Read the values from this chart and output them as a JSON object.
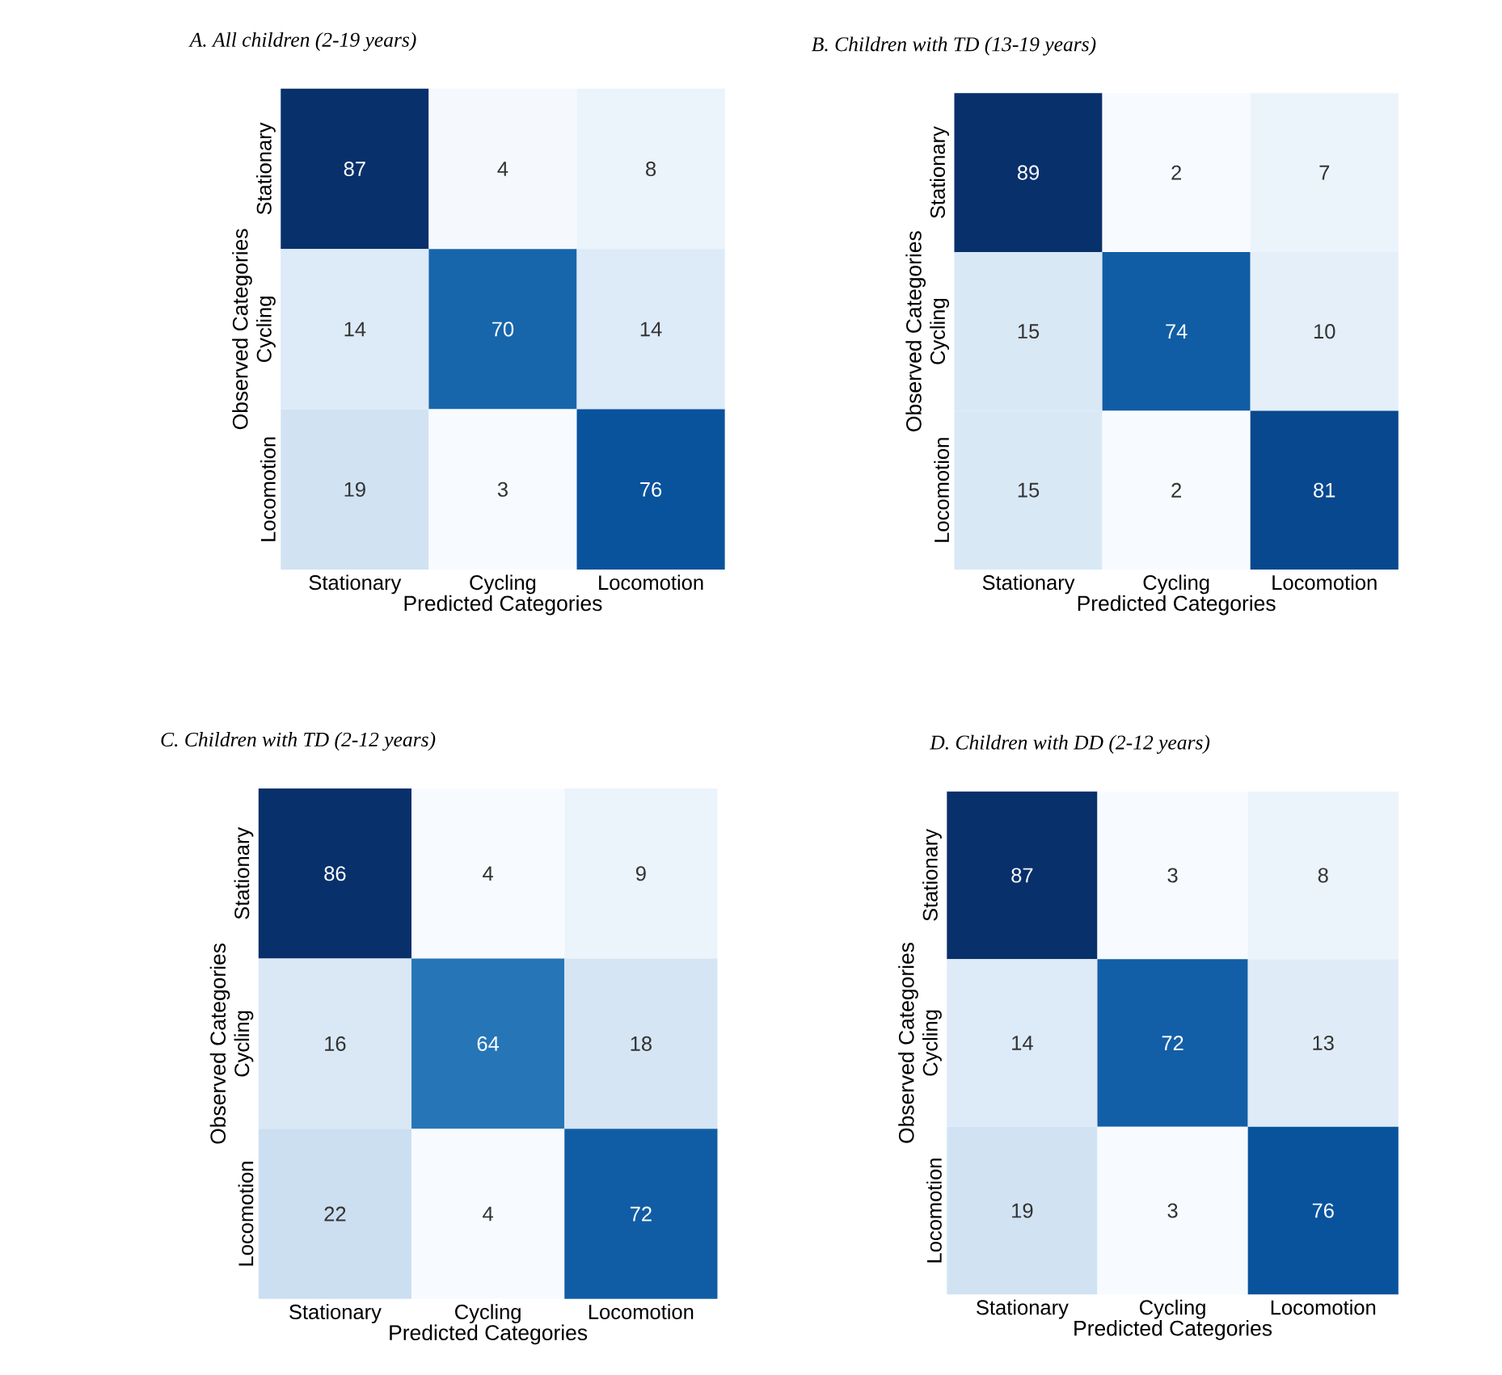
{
  "chart_data": [
    {
      "type": "heatmap",
      "title": "A. All children (2-19 years)",
      "xlabel": "Predicted Categories",
      "ylabel": "Observed Categories",
      "categories": [
        "Stationary",
        "Cycling",
        "Locomotion"
      ],
      "y_categories": [
        "Stationary",
        "Cycling",
        "Locomotion"
      ],
      "cells": [
        [
          87,
          4,
          8
        ],
        [
          14,
          70,
          14
        ],
        [
          19,
          3,
          76
        ]
      ],
      "data_labels": true
    },
    {
      "type": "heatmap",
      "title": "B. Children with TD (13-19 years)",
      "xlabel": "Predicted Categories",
      "ylabel": "Observed Categories",
      "categories": [
        "Stationary",
        "Cycling",
        "Locomotion"
      ],
      "y_categories": [
        "Stationary",
        "Cycling",
        "Locomotion"
      ],
      "cells": [
        [
          89,
          2,
          7
        ],
        [
          15,
          74,
          10
        ],
        [
          15,
          2,
          81
        ]
      ],
      "data_labels": true
    },
    {
      "type": "heatmap",
      "title": "C. Children with TD (2-12 years)",
      "xlabel": "Predicted Categories",
      "ylabel": "Observed Categories",
      "categories": [
        "Stationary",
        "Cycling",
        "Locomotion"
      ],
      "y_categories": [
        "Stationary",
        "Cycling",
        "Locomotion"
      ],
      "cells": [
        [
          86,
          4,
          9
        ],
        [
          16,
          64,
          18
        ],
        [
          22,
          4,
          72
        ]
      ],
      "data_labels": true
    },
    {
      "type": "heatmap",
      "title": "D. Children with DD (2-12 years)",
      "xlabel": "Predicted Categories",
      "ylabel": "Observed Categories",
      "categories": [
        "Stationary",
        "Cycling",
        "Locomotion"
      ],
      "y_categories": [
        "Stationary",
        "Cycling",
        "Locomotion"
      ],
      "cells": [
        [
          87,
          3,
          8
        ],
        [
          14,
          72,
          13
        ],
        [
          19,
          3,
          76
        ]
      ],
      "data_labels": true
    }
  ]
}
